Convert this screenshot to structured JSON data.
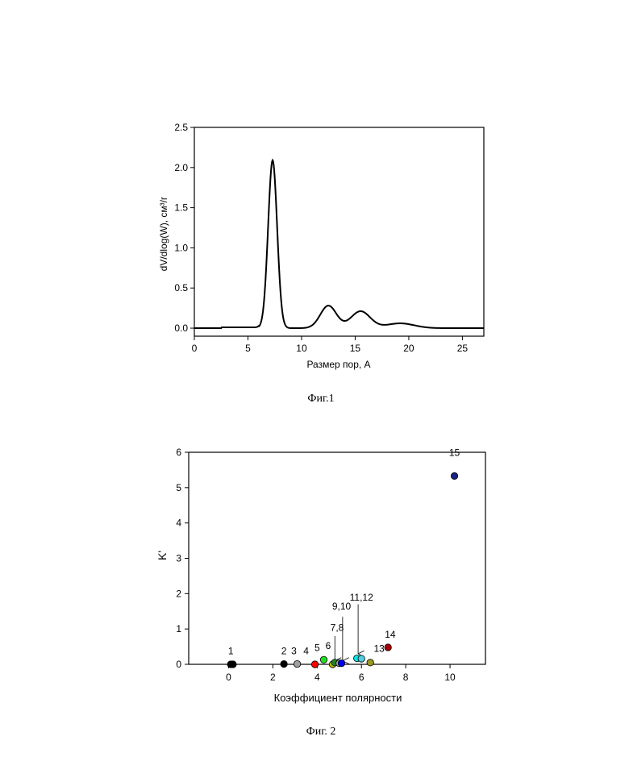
{
  "chart_data": [
    {
      "type": "line",
      "xlabel": "Размер пор, А",
      "ylabel": "dV/dlog(W), см³/г",
      "xlim": [
        0,
        27
      ],
      "ylim": [
        -0.1,
        2.5
      ],
      "xticks": [
        0,
        5,
        10,
        15,
        20,
        25
      ],
      "yticks": [
        "0.0",
        "0.5",
        "1.0",
        "1.5",
        "2.0",
        "2.5"
      ],
      "grid": false,
      "caption": "Фиг.1",
      "peaks": [
        {
          "center": 7.3,
          "height": 2.09,
          "width": 0.42
        },
        {
          "center": 12.5,
          "height": 0.28,
          "width": 0.75
        },
        {
          "center": 15.5,
          "height": 0.21,
          "width": 0.9
        },
        {
          "center": 19.2,
          "height": 0.06,
          "width": 1.3
        }
      ],
      "baseline": 0.0
    },
    {
      "type": "scatter",
      "xlabel": "Коэффициент полярности",
      "ylabel": "K'",
      "xlim": [
        -1.8,
        11.6
      ],
      "ylim": [
        0,
        6
      ],
      "xticks": [
        0,
        2,
        4,
        6,
        8,
        10
      ],
      "yticks": [
        0,
        1,
        2,
        3,
        4,
        5,
        6
      ],
      "grid": false,
      "caption": "Фиг. 2",
      "points": [
        {
          "x": 0.1,
          "y": 0.0,
          "color": "#000000"
        },
        {
          "x": 0.2,
          "y": 0.0,
          "color": "#000000"
        },
        {
          "x": 2.5,
          "y": 0.01,
          "color": "#000000"
        },
        {
          "x": 3.1,
          "y": 0.01,
          "color": "#a0a0a0"
        },
        {
          "x": 3.9,
          "y": 0.0,
          "color": "#ff0000"
        },
        {
          "x": 4.3,
          "y": 0.13,
          "color": "#22dd22"
        },
        {
          "x": 4.7,
          "y": 0.0,
          "color": "#bbbb00"
        },
        {
          "x": 4.8,
          "y": 0.05,
          "color": "#228822"
        },
        {
          "x": 5.0,
          "y": 0.03,
          "color": "#a0a0a0"
        },
        {
          "x": 5.1,
          "y": 0.03,
          "color": "#0000ff"
        },
        {
          "x": 5.8,
          "y": 0.17,
          "color": "#00e5e5"
        },
        {
          "x": 6.0,
          "y": 0.16,
          "color": "#55ccdd"
        },
        {
          "x": 6.4,
          "y": 0.05,
          "color": "#999922"
        },
        {
          "x": 7.2,
          "y": 0.48,
          "color": "#aa0000"
        },
        {
          "x": 10.2,
          "y": 5.33,
          "color": "#1a237e"
        }
      ],
      "labels": [
        {
          "text": "1",
          "x": 0.1,
          "y": 0.28
        },
        {
          "text": "2",
          "x": 2.5,
          "y": 0.28
        },
        {
          "text": "3",
          "x": 2.95,
          "y": 0.28
        },
        {
          "text": "4",
          "x": 3.5,
          "y": 0.28
        },
        {
          "text": "5",
          "x": 4.0,
          "y": 0.38
        },
        {
          "text": "6",
          "x": 4.5,
          "y": 0.43
        },
        {
          "text": "7,8",
          "x": 4.9,
          "y": 0.95
        },
        {
          "text": "9,10",
          "x": 5.1,
          "y": 1.55
        },
        {
          "text": "11,12",
          "x": 6.0,
          "y": 1.8
        },
        {
          "text": "13",
          "x": 6.8,
          "y": 0.35
        },
        {
          "text": "14",
          "x": 7.3,
          "y": 0.75
        },
        {
          "text": "15",
          "x": 10.2,
          "y": 5.9
        }
      ],
      "arrows": [
        {
          "x": 4.8,
          "y_from": 0.8,
          "y_to": 0.1
        },
        {
          "x": 5.15,
          "y_from": 1.35,
          "y_to": 0.1
        },
        {
          "x": 5.85,
          "y_from": 1.7,
          "y_to": 0.3
        }
      ]
    }
  ]
}
